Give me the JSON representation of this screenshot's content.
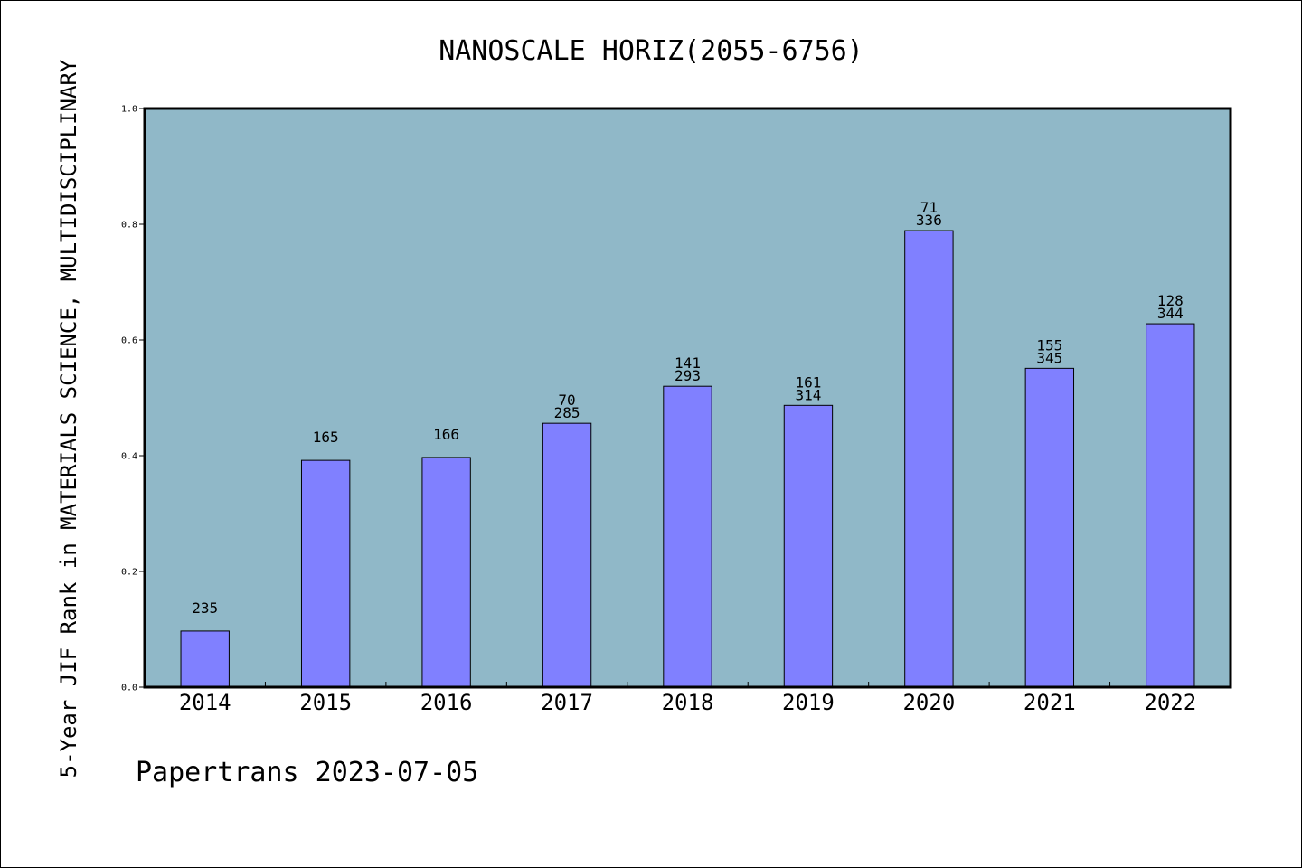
{
  "chart_data": {
    "type": "bar",
    "title": "NANOSCALE HORIZ(2055-6756)",
    "ylabel": "5-Year JIF Rank in MATERIALS SCIENCE, MULTIDISCIPLINARY",
    "xlabel": "",
    "categories": [
      "2014",
      "2015",
      "2016",
      "2017",
      "2018",
      "2019",
      "2020",
      "2021",
      "2022"
    ],
    "values": [
      0.097,
      0.392,
      0.397,
      0.456,
      0.52,
      0.487,
      0.789,
      0.551,
      0.628
    ],
    "ylim": [
      0,
      1.0
    ],
    "yticks": [
      "0.0",
      "0.2",
      "0.4",
      "0.6",
      "0.8",
      "1.0"
    ],
    "bar_labels": [
      [
        "235"
      ],
      [
        "165"
      ],
      [
        "166"
      ],
      [
        "70",
        "285"
      ],
      [
        "141",
        "293"
      ],
      [
        "161",
        "314"
      ],
      [
        "71",
        "336"
      ],
      [
        "155",
        "345"
      ],
      [
        "128",
        "344"
      ]
    ],
    "grid": false,
    "legend": "none",
    "colors": {
      "plot_background": "#90b8c8",
      "bar": "#8080ff",
      "bar_edge": "#000000"
    }
  },
  "footer": "Papertrans 2023-07-05"
}
